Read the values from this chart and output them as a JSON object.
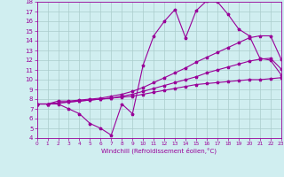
{
  "line1_x": [
    0,
    1,
    2,
    3,
    4,
    5,
    6,
    7,
    8,
    9,
    10,
    11,
    12,
    13,
    14,
    15,
    16,
    17,
    18,
    19,
    20,
    21,
    22,
    23
  ],
  "line1_y": [
    7.5,
    7.5,
    7.5,
    7.0,
    6.5,
    5.5,
    5.0,
    4.3,
    7.5,
    6.5,
    11.5,
    14.5,
    16.0,
    17.2,
    14.3,
    17.1,
    18.1,
    18.0,
    16.7,
    15.2,
    14.5,
    12.2,
    12.0,
    10.5
  ],
  "line2_x": [
    0,
    1,
    2,
    3,
    4,
    5,
    6,
    7,
    8,
    9,
    10,
    11,
    12,
    13,
    14,
    15,
    16,
    17,
    18,
    19,
    20,
    21,
    22,
    23
  ],
  "line2_y": [
    7.5,
    7.5,
    7.8,
    7.8,
    7.9,
    8.0,
    8.1,
    8.3,
    8.5,
    8.8,
    9.2,
    9.7,
    10.2,
    10.7,
    11.2,
    11.8,
    12.3,
    12.8,
    13.3,
    13.8,
    14.3,
    14.5,
    14.5,
    12.1
  ],
  "line3_x": [
    0,
    1,
    2,
    3,
    4,
    5,
    6,
    7,
    8,
    9,
    10,
    11,
    12,
    13,
    14,
    15,
    16,
    17,
    18,
    19,
    20,
    21,
    22,
    23
  ],
  "line3_y": [
    7.5,
    7.5,
    7.6,
    7.7,
    7.8,
    7.9,
    8.0,
    8.1,
    8.3,
    8.5,
    8.8,
    9.1,
    9.4,
    9.7,
    10.0,
    10.3,
    10.7,
    11.0,
    11.3,
    11.6,
    11.9,
    12.1,
    12.2,
    11.1
  ],
  "line4_x": [
    0,
    1,
    2,
    3,
    4,
    5,
    6,
    7,
    8,
    9,
    10,
    11,
    12,
    13,
    14,
    15,
    16,
    17,
    18,
    19,
    20,
    21,
    22,
    23
  ],
  "line4_y": [
    7.5,
    7.5,
    7.6,
    7.7,
    7.8,
    7.9,
    8.0,
    8.1,
    8.2,
    8.3,
    8.5,
    8.7,
    8.9,
    9.1,
    9.3,
    9.5,
    9.6,
    9.7,
    9.8,
    9.9,
    10.0,
    10.0,
    10.1,
    10.2
  ],
  "color": "#990099",
  "bg_color": "#d0eef0",
  "grid_color": "#aacccc",
  "xlabel": "Windchill (Refroidissement éolien,°C)",
  "xlim": [
    0,
    23
  ],
  "ylim": [
    4,
    18
  ],
  "xticks": [
    0,
    1,
    2,
    3,
    4,
    5,
    6,
    7,
    8,
    9,
    10,
    11,
    12,
    13,
    14,
    15,
    16,
    17,
    18,
    19,
    20,
    21,
    22,
    23
  ],
  "yticks": [
    4,
    5,
    6,
    7,
    8,
    9,
    10,
    11,
    12,
    13,
    14,
    15,
    16,
    17,
    18
  ],
  "marker": "*",
  "markersize": 2.5,
  "linewidth": 0.8
}
